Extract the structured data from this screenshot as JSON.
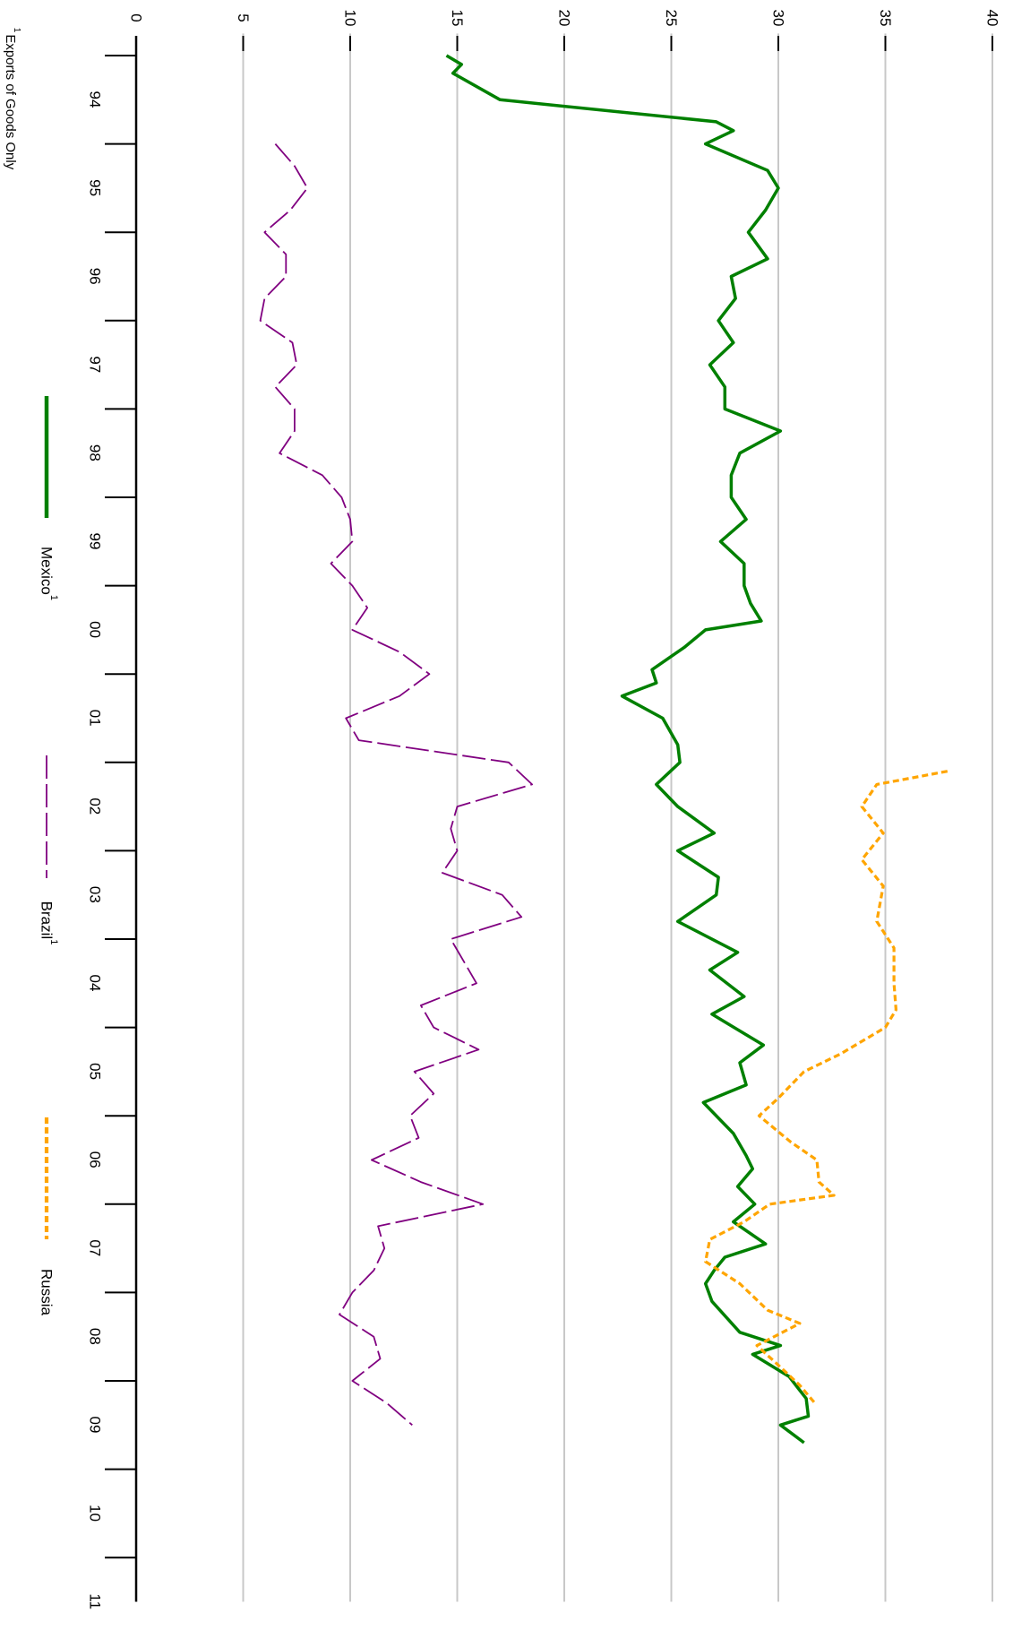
{
  "chart_data": {
    "type": "line",
    "orientation": "rotated-90-clockwise",
    "ylim": [
      0,
      40
    ],
    "y_ticks": [
      0,
      5,
      10,
      15,
      20,
      25,
      30,
      35,
      40
    ],
    "y_tick_labels": [
      "0",
      "5",
      "10",
      "15",
      "20",
      "25",
      "30",
      "35",
      "40"
    ],
    "x_range": [
      1993.75,
      2011.5
    ],
    "x_ticks": [
      1994,
      1995,
      1996,
      1997,
      1998,
      1999,
      2000,
      2001,
      2002,
      2003,
      2004,
      2005,
      2006,
      2007,
      2008,
      2009,
      2010,
      2011
    ],
    "x_tick_labels": [
      "94",
      "95",
      "96",
      "97",
      "98",
      "99",
      "00",
      "01",
      "02",
      "03",
      "04",
      "05",
      "06",
      "07",
      "08",
      "09",
      "10",
      "11"
    ],
    "grid": true,
    "legend_position": "bottom",
    "footnote_marker": "1",
    "footnote": "Exports of Goods Only",
    "series": [
      {
        "name": "Mexico",
        "name_superscript": "1",
        "color": "#008000",
        "style": "solid",
        "points": [
          [
            1994.0,
            14.5
          ],
          [
            1994.1,
            15.2
          ],
          [
            1994.2,
            14.8
          ],
          [
            1994.5,
            17.0
          ],
          [
            1994.75,
            27.1
          ],
          [
            1994.85,
            27.9
          ],
          [
            1995.0,
            26.6
          ],
          [
            1995.3,
            29.5
          ],
          [
            1995.5,
            30.0
          ],
          [
            1995.75,
            29.4
          ],
          [
            1996.0,
            28.6
          ],
          [
            1996.3,
            29.5
          ],
          [
            1996.5,
            27.8
          ],
          [
            1996.75,
            28.0
          ],
          [
            1997.0,
            27.2
          ],
          [
            1997.25,
            27.9
          ],
          [
            1997.5,
            26.8
          ],
          [
            1997.75,
            27.5
          ],
          [
            1998.0,
            27.5
          ],
          [
            1998.25,
            30.1
          ],
          [
            1998.5,
            28.2
          ],
          [
            1998.75,
            27.8
          ],
          [
            1999.0,
            27.8
          ],
          [
            1999.25,
            28.5
          ],
          [
            1999.5,
            27.3
          ],
          [
            1999.75,
            28.4
          ],
          [
            2000.0,
            28.4
          ],
          [
            2000.2,
            28.7
          ],
          [
            2000.4,
            29.2
          ],
          [
            2000.5,
            26.6
          ],
          [
            2000.7,
            25.6
          ],
          [
            2000.95,
            24.1
          ],
          [
            2001.1,
            24.3
          ],
          [
            2001.25,
            22.7
          ],
          [
            2001.5,
            24.6
          ],
          [
            2001.8,
            25.3
          ],
          [
            2002.0,
            25.4
          ],
          [
            2002.25,
            24.3
          ],
          [
            2002.5,
            25.3
          ],
          [
            2002.8,
            27.0
          ],
          [
            2003.0,
            25.3
          ],
          [
            2003.3,
            27.2
          ],
          [
            2003.5,
            27.1
          ],
          [
            2003.8,
            25.3
          ],
          [
            2004.15,
            28.1
          ],
          [
            2004.35,
            26.8
          ],
          [
            2004.65,
            28.4
          ],
          [
            2004.85,
            26.9
          ],
          [
            2005.2,
            29.3
          ],
          [
            2005.4,
            28.2
          ],
          [
            2005.65,
            28.5
          ],
          [
            2005.85,
            26.5
          ],
          [
            2006.2,
            27.9
          ],
          [
            2006.45,
            28.5
          ],
          [
            2006.6,
            28.8
          ],
          [
            2006.8,
            28.1
          ],
          [
            2007.0,
            28.9
          ],
          [
            2007.2,
            27.9
          ],
          [
            2007.45,
            29.4
          ],
          [
            2007.6,
            27.5
          ],
          [
            2007.75,
            27.0
          ],
          [
            2007.9,
            26.6
          ],
          [
            2008.1,
            26.9
          ],
          [
            2008.45,
            28.2
          ],
          [
            2008.6,
            30.1
          ],
          [
            2008.7,
            28.8
          ],
          [
            2008.95,
            30.5
          ],
          [
            2009.2,
            31.3
          ],
          [
            2009.4,
            31.4
          ],
          [
            2009.5,
            30.1
          ],
          [
            2009.7,
            31.2
          ]
        ]
      },
      {
        "name": "Brazil",
        "name_superscript": "1",
        "color": "#800080",
        "style": "long-dash",
        "points": [
          [
            1995.0,
            6.5
          ],
          [
            1995.25,
            7.4
          ],
          [
            1995.5,
            8.0
          ],
          [
            1995.75,
            7.2
          ],
          [
            1996.0,
            6.0
          ],
          [
            1996.25,
            7.0
          ],
          [
            1996.5,
            7.0
          ],
          [
            1996.75,
            6.0
          ],
          [
            1997.0,
            5.8
          ],
          [
            1997.25,
            7.3
          ],
          [
            1997.5,
            7.5
          ],
          [
            1997.75,
            6.5
          ],
          [
            1998.0,
            7.4
          ],
          [
            1998.25,
            7.4
          ],
          [
            1998.5,
            6.7
          ],
          [
            1998.75,
            8.7
          ],
          [
            1999.0,
            9.6
          ],
          [
            1999.25,
            10.0
          ],
          [
            1999.5,
            10.1
          ],
          [
            1999.75,
            9.1
          ],
          [
            2000.0,
            10.1
          ],
          [
            2000.25,
            10.8
          ],
          [
            2000.5,
            10.1
          ],
          [
            2000.75,
            12.3
          ],
          [
            2001.0,
            13.7
          ],
          [
            2001.25,
            12.3
          ],
          [
            2001.5,
            9.8
          ],
          [
            2001.75,
            10.4
          ],
          [
            2002.0,
            17.4
          ],
          [
            2002.25,
            18.5
          ],
          [
            2002.5,
            15.0
          ],
          [
            2002.75,
            14.7
          ],
          [
            2003.0,
            15.0
          ],
          [
            2003.25,
            14.3
          ],
          [
            2003.5,
            17.1
          ],
          [
            2003.75,
            18.0
          ],
          [
            2004.0,
            14.7
          ],
          [
            2004.25,
            15.3
          ],
          [
            2004.5,
            15.9
          ],
          [
            2004.75,
            13.3
          ],
          [
            2005.0,
            13.9
          ],
          [
            2005.25,
            16.0
          ],
          [
            2005.5,
            13.0
          ],
          [
            2005.75,
            13.9
          ],
          [
            2006.0,
            12.8
          ],
          [
            2006.25,
            13.2
          ],
          [
            2006.5,
            11.0
          ],
          [
            2006.75,
            13.3
          ],
          [
            2007.0,
            16.2
          ],
          [
            2007.25,
            11.3
          ],
          [
            2007.5,
            11.6
          ],
          [
            2007.75,
            11.1
          ],
          [
            2008.0,
            10.1
          ],
          [
            2008.25,
            9.5
          ],
          [
            2008.5,
            11.1
          ],
          [
            2008.75,
            11.4
          ],
          [
            2009.0,
            10.1
          ],
          [
            2009.25,
            11.7
          ],
          [
            2009.5,
            12.9
          ]
        ]
      },
      {
        "name": "Russia",
        "color": "#FFA500",
        "style": "short-dash",
        "points": [
          [
            2002.1,
            37.9
          ],
          [
            2002.25,
            34.6
          ],
          [
            2002.5,
            33.9
          ],
          [
            2002.8,
            34.9
          ],
          [
            2003.1,
            33.9
          ],
          [
            2003.4,
            34.9
          ],
          [
            2003.8,
            34.6
          ],
          [
            2004.1,
            35.4
          ],
          [
            2004.5,
            35.4
          ],
          [
            2004.8,
            35.5
          ],
          [
            2005.0,
            35.0
          ],
          [
            2005.3,
            32.9
          ],
          [
            2005.5,
            31.2
          ],
          [
            2005.8,
            30.0
          ],
          [
            2006.0,
            29.1
          ],
          [
            2006.3,
            30.6
          ],
          [
            2006.5,
            31.8
          ],
          [
            2006.75,
            31.9
          ],
          [
            2006.9,
            32.6
          ],
          [
            2007.0,
            29.6
          ],
          [
            2007.2,
            28.4
          ],
          [
            2007.4,
            26.8
          ],
          [
            2007.65,
            26.6
          ],
          [
            2007.9,
            28.2
          ],
          [
            2008.2,
            29.5
          ],
          [
            2008.35,
            31.0
          ],
          [
            2008.6,
            29.0
          ],
          [
            2008.8,
            29.9
          ],
          [
            2009.05,
            31.0
          ],
          [
            2009.25,
            31.7
          ]
        ]
      }
    ]
  }
}
